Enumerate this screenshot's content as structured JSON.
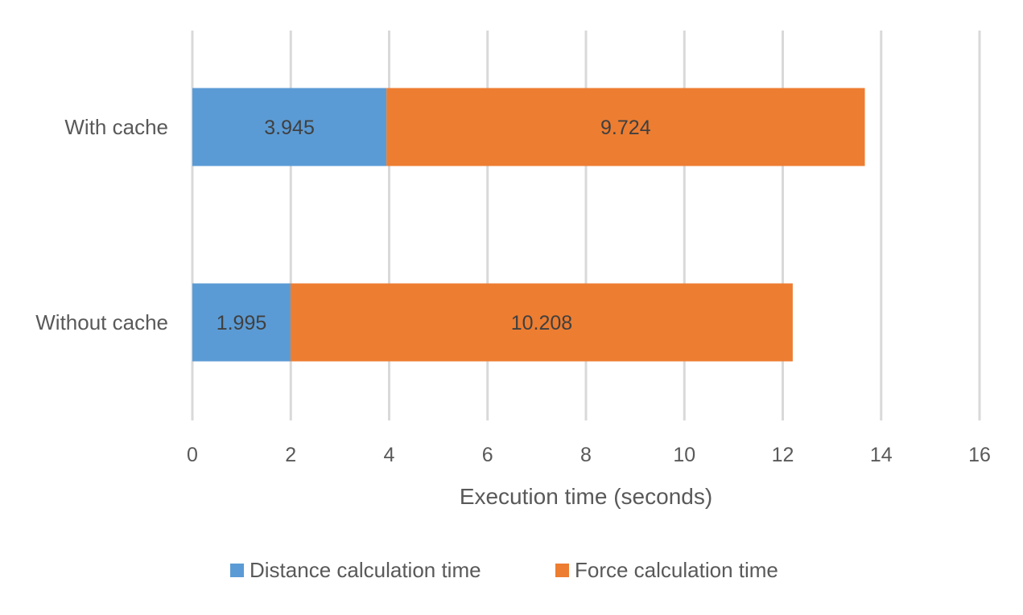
{
  "chart_data": {
    "type": "bar",
    "orientation": "horizontal",
    "stacked": true,
    "title": "",
    "xlabel": "Execution time (seconds)",
    "ylabel": "",
    "xlim": [
      0,
      16
    ],
    "xticks": [
      "0",
      "2",
      "4",
      "6",
      "8",
      "10",
      "12",
      "14",
      "16"
    ],
    "grid": true,
    "categories": [
      "With cache",
      "Without cache"
    ],
    "series": [
      {
        "name": "Distance calculation time",
        "color": "#5B9BD5",
        "values": [
          3.945,
          1.995
        ],
        "labels": [
          "3.945",
          "1.995"
        ]
      },
      {
        "name": "Force calculation time",
        "color": "#ED7D31",
        "values": [
          9.724,
          10.208
        ],
        "labels": [
          "9.724",
          "10.208"
        ]
      }
    ],
    "legend_position": "bottom"
  }
}
